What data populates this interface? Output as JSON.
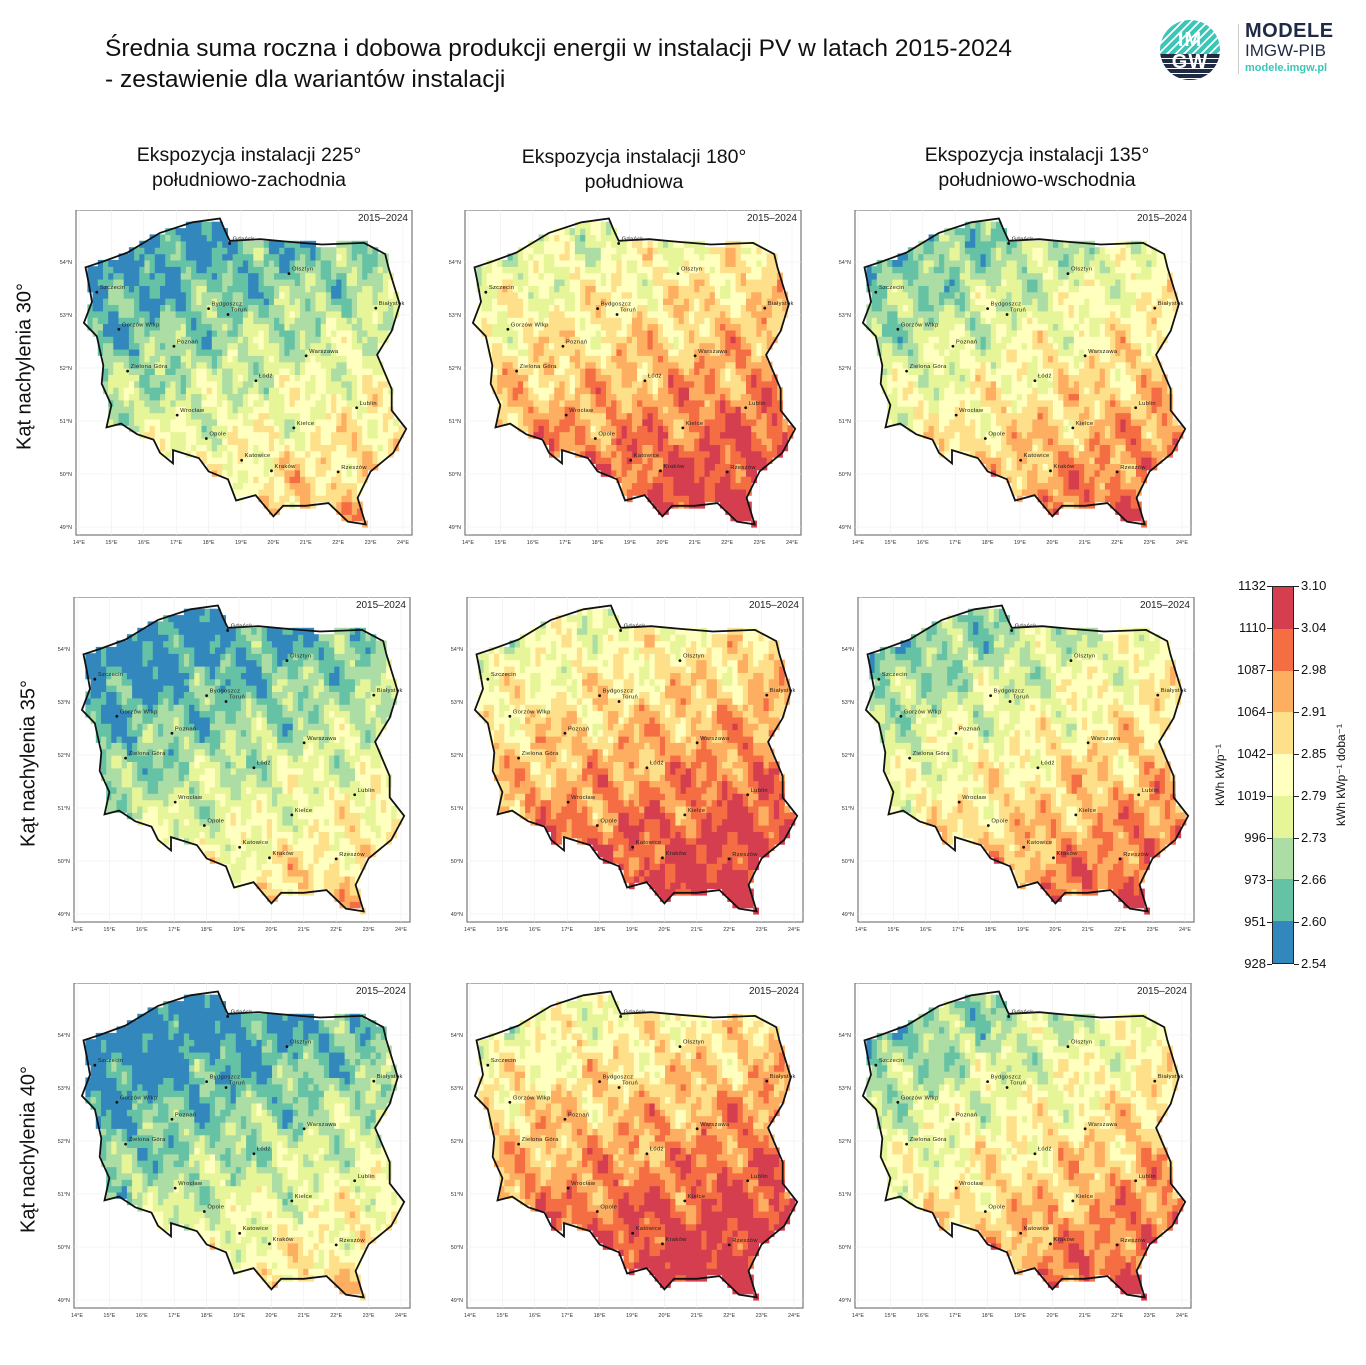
{
  "header": {
    "title_line1": "Średnia suma roczna i dobowa produkcji energii w instalacji PV w latach 2015-2024",
    "title_line2": "- zestawienie dla wariantów instalacji"
  },
  "logo": {
    "circle_top": "IM",
    "circle_bottom": "GW",
    "line1": "MODELE",
    "line2": "IMGW-PIB",
    "url": "modele.imgw.pl",
    "accent_color": "#3cc6b8",
    "dark_color": "#1f2a44"
  },
  "columns": [
    {
      "line1": "Ekspozycja instalacji 225°",
      "line2": "południowo-zachodnia"
    },
    {
      "line1": "Ekspozycja instalacji 180°",
      "line2": "południowa"
    },
    {
      "line1": "Ekspozycja instalacji 135°",
      "line2": "południowo-wschodnia"
    }
  ],
  "rows": [
    "Kąt nachylenia 30°",
    "Kąt nachylenia 35°",
    "Kąt nachylenia 40°"
  ],
  "map": {
    "period": "2015–2024",
    "lat_ticks": [
      "49°N",
      "50°N",
      "51°N",
      "52°N",
      "53°N",
      "54°N"
    ],
    "lon_ticks": [
      "14°E",
      "15°E",
      "16°E",
      "17°E",
      "18°E",
      "19°E",
      "20°E",
      "21°E",
      "22°E",
      "23°E",
      "24°E"
    ],
    "cities": [
      {
        "name": "Gdańsk",
        "lon": 18.65,
        "lat": 54.35
      },
      {
        "name": "Olsztyn",
        "lon": 20.48,
        "lat": 53.78
      },
      {
        "name": "Szczecin",
        "lon": 14.55,
        "lat": 53.43
      },
      {
        "name": "Bydgoszcz",
        "lon": 18.0,
        "lat": 53.12
      },
      {
        "name": "Toruń",
        "lon": 18.6,
        "lat": 53.01
      },
      {
        "name": "Białystok",
        "lon": 23.16,
        "lat": 53.13
      },
      {
        "name": "Gorzów Wlkp",
        "lon": 15.23,
        "lat": 52.73
      },
      {
        "name": "Poznań",
        "lon": 16.93,
        "lat": 52.41
      },
      {
        "name": "Warszawa",
        "lon": 21.01,
        "lat": 52.23
      },
      {
        "name": "Zielona Góra",
        "lon": 15.5,
        "lat": 51.94
      },
      {
        "name": "Łódź",
        "lon": 19.46,
        "lat": 51.76
      },
      {
        "name": "Lublin",
        "lon": 22.57,
        "lat": 51.25
      },
      {
        "name": "Wrocław",
        "lon": 17.03,
        "lat": 51.11
      },
      {
        "name": "Kielce",
        "lon": 20.63,
        "lat": 50.87
      },
      {
        "name": "Opole",
        "lon": 17.93,
        "lat": 50.67
      },
      {
        "name": "Katowice",
        "lon": 19.02,
        "lat": 50.26
      },
      {
        "name": "Kraków",
        "lon": 19.94,
        "lat": 50.06
      },
      {
        "name": "Rzeszów",
        "lon": 22.0,
        "lat": 50.04
      }
    ]
  },
  "colorbar": {
    "left_label": "kWh kWp⁻¹",
    "right_label": "kWh kWp⁻¹ doba⁻¹",
    "left_ticks": [
      "928",
      "951",
      "973",
      "996",
      "1019",
      "1042",
      "1064",
      "1087",
      "1110",
      "1132"
    ],
    "right_ticks": [
      "2.54",
      "2.60",
      "2.66",
      "2.73",
      "2.79",
      "2.85",
      "2.91",
      "2.98",
      "3.04",
      "3.10"
    ],
    "colors": [
      "#3288bd",
      "#66c2a5",
      "#abdda4",
      "#e6f598",
      "#ffffbf",
      "#fee08b",
      "#fdae61",
      "#f46d43",
      "#d53e4f"
    ]
  }
}
